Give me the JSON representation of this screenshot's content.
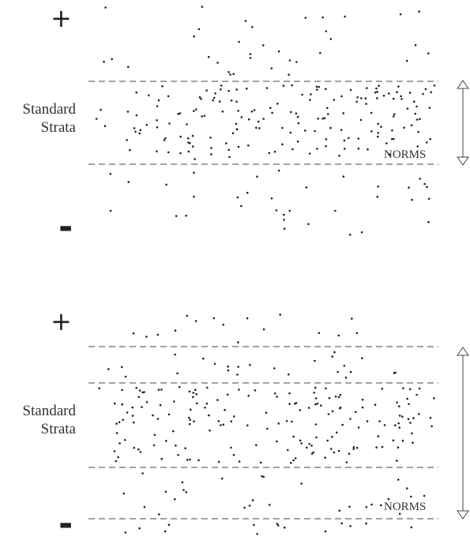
{
  "panels": [
    {
      "plus": "+",
      "minus": "-",
      "label_line1": "Standard",
      "label_line2": "Strata",
      "norms_label": "NORMS"
    },
    {
      "plus": "+",
      "minus": "-",
      "label_line1": "Standard",
      "label_line2": "Strata",
      "norms_label": "NORMS"
    }
  ]
}
